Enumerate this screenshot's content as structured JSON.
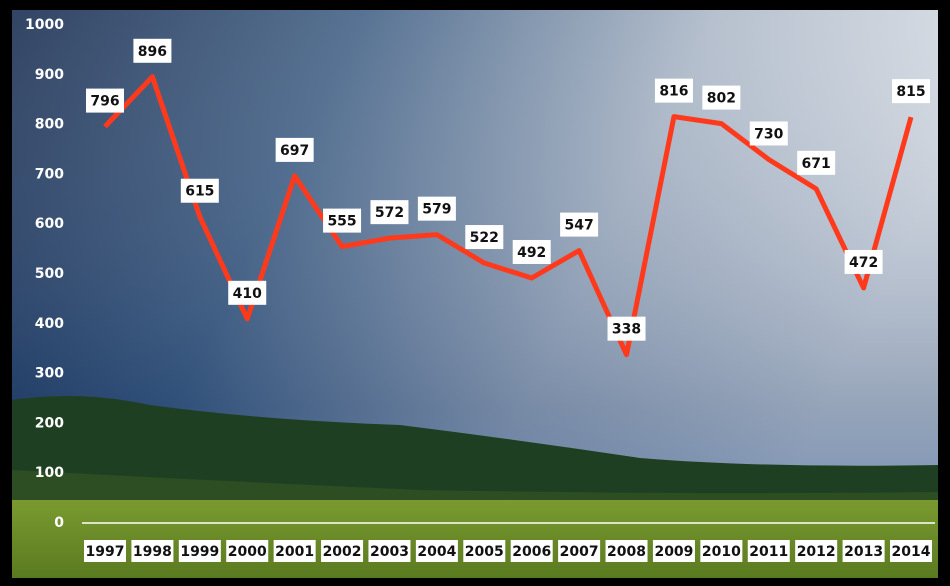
{
  "chart_data": {
    "type": "line",
    "categories": [
      "1997",
      "1998",
      "1999",
      "2000",
      "2001",
      "2002",
      "2003",
      "2004",
      "2005",
      "2006",
      "2007",
      "2008",
      "2009",
      "2010",
      "2011",
      "2012",
      "2013",
      "2014"
    ],
    "values": [
      796,
      896,
      615,
      410,
      697,
      555,
      572,
      579,
      522,
      492,
      547,
      338,
      816,
      802,
      730,
      671,
      472,
      815
    ],
    "color": "#ff3a1c",
    "ylim": [
      0,
      1000
    ],
    "yticks": [
      0,
      100,
      200,
      300,
      400,
      500,
      600,
      700,
      800,
      900,
      1000
    ]
  }
}
